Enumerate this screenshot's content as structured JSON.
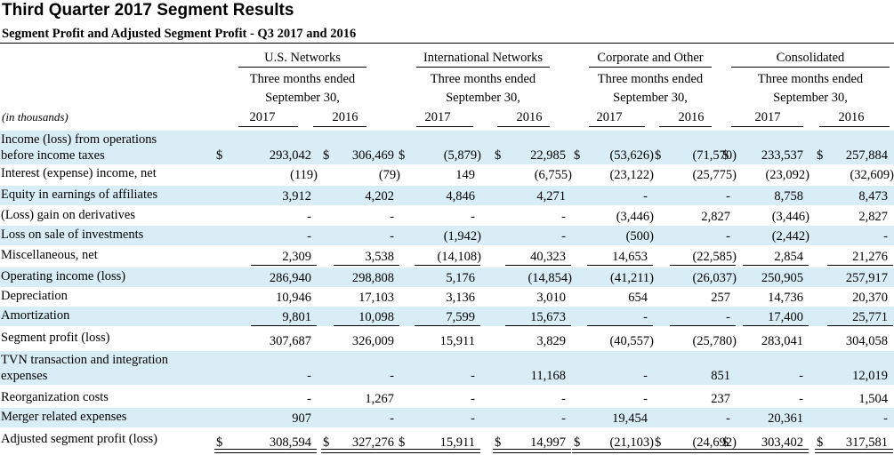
{
  "title": "Third Quarter 2017 Segment Results",
  "subtitle": "Segment Profit and Adjusted Segment Profit - Q3 2017 and 2016",
  "units_label": "(in thousands)",
  "groups": [
    {
      "name": "U.S. Networks",
      "period_line1": "Three months ended",
      "period_line2": "September 30,",
      "years": [
        "2017",
        "2016"
      ]
    },
    {
      "name": "International Networks",
      "period_line1": "Three months ended",
      "period_line2": "September 30,",
      "years": [
        "2017",
        "2016"
      ]
    },
    {
      "name": "Corporate and Other",
      "period_line1": "Three months ended",
      "period_line2": "September 30,",
      "years": [
        "2017",
        "2016"
      ]
    },
    {
      "name": "Consolidated",
      "period_line1": "Three months ended",
      "period_line2": "September 30,",
      "years": [
        "2017",
        "2016"
      ]
    }
  ],
  "rows": [
    {
      "label": "Income (loss) from operations\nbefore income taxes",
      "values": [
        "293,042",
        "306,469",
        "(5,879)",
        "22,985",
        "(53,626)",
        "(71,570)",
        "233,537",
        "257,884"
      ],
      "dollar": true
    },
    {
      "label": "Interest (expense) income, net",
      "values": [
        "(119)",
        "(79)",
        "149",
        "(6,755)",
        "(23,122)",
        "(25,775)",
        "(23,092)",
        "(32,609)"
      ]
    },
    {
      "label": "Equity in earnings of affiliates",
      "values": [
        "3,912",
        "4,202",
        "4,846",
        "4,271",
        "-",
        "-",
        "8,758",
        "8,473"
      ]
    },
    {
      "label": "(Loss) gain on derivatives",
      "values": [
        "-",
        "-",
        "-",
        "-",
        "(3,446)",
        "2,827",
        "(3,446)",
        "2,827"
      ]
    },
    {
      "label": "Loss on sale of investments",
      "values": [
        "-",
        "-",
        "(1,942)",
        "-",
        "(500)",
        "-",
        "(2,442)",
        "-"
      ]
    },
    {
      "label": "Miscellaneous, net",
      "values": [
        "2,309",
        "3,538",
        "(14,108)",
        "40,323",
        "14,653",
        "(22,585)",
        "2,854",
        "21,276"
      ]
    },
    {
      "label": "Operating income (loss)",
      "values": [
        "286,940",
        "298,808",
        "5,176",
        "(14,854)",
        "(41,211)",
        "(26,037)",
        "250,905",
        "257,917"
      ]
    },
    {
      "label": "Depreciation",
      "values": [
        "10,946",
        "17,103",
        "3,136",
        "3,010",
        "654",
        "257",
        "14,736",
        "20,370"
      ]
    },
    {
      "label": "Amortization",
      "values": [
        "9,801",
        "10,098",
        "7,599",
        "15,673",
        "-",
        "-",
        "17,400",
        "25,771"
      ]
    },
    {
      "label": "Segment profit (loss)",
      "values": [
        "307,687",
        "326,009",
        "15,911",
        "3,829",
        "(40,557)",
        "(25,780)",
        "283,041",
        "304,058"
      ]
    },
    {
      "label": "TVN transaction and integration\nexpenses",
      "values": [
        "-",
        "-",
        "-",
        "11,168",
        "-",
        "851",
        "-",
        "12,019"
      ]
    },
    {
      "label": "Reorganization costs",
      "values": [
        "-",
        "1,267",
        "-",
        "-",
        "-",
        "237",
        "-",
        "1,504"
      ]
    },
    {
      "label": "Merger related expenses",
      "values": [
        "907",
        "-",
        "-",
        "-",
        "19,454",
        "-",
        "20,361",
        "-"
      ]
    },
    {
      "label": "Adjusted segment profit (loss)",
      "values": [
        "308,594",
        "327,276",
        "15,911",
        "14,997",
        "(21,103)",
        "(24,692)",
        "303,402",
        "317,581"
      ],
      "dollar": true
    }
  ],
  "currency_symbol": "$",
  "colors": {
    "band": "#d9edf7",
    "text": "#000000"
  }
}
